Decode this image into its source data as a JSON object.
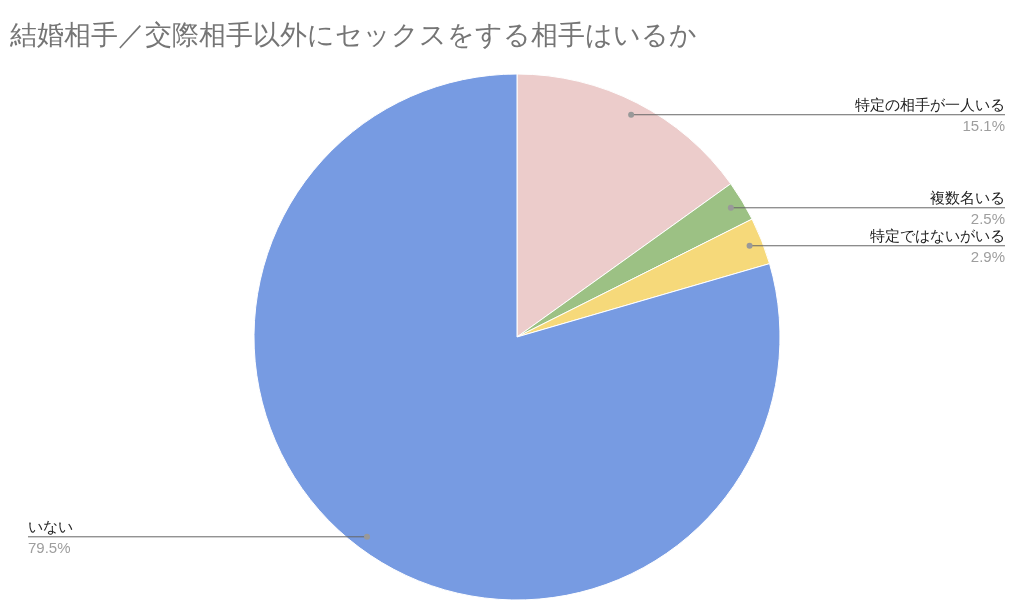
{
  "chart_data": {
    "type": "pie",
    "title": "結婚相手／交際相手以外にセックスをする相手はいるか",
    "categories": [
      "特定の相手が一人いる",
      "複数名いる",
      "特定ではないがいる",
      "いない"
    ],
    "values": [
      15.1,
      2.5,
      2.9,
      79.5
    ],
    "colors": [
      "#eccccb",
      "#9cc184",
      "#f6d97a",
      "#779be2"
    ],
    "value_labels": [
      "15.1%",
      "2.5%",
      "2.9%",
      "79.5%"
    ]
  }
}
